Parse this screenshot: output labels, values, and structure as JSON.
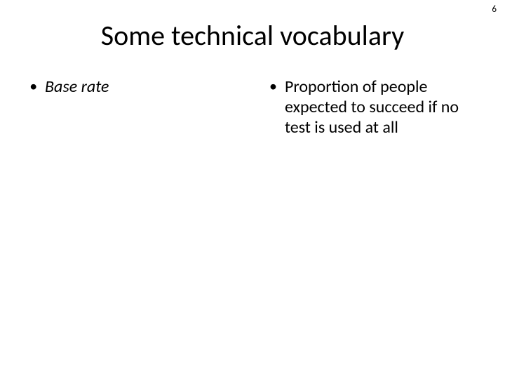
{
  "page_number": "6",
  "title": "Some technical vocabulary",
  "left": {
    "items": [
      {
        "text": "Base rate",
        "italic": true
      }
    ]
  },
  "right": {
    "items": [
      {
        "text": "Proportion of people expected to succeed if no test is used at all",
        "italic": false
      }
    ]
  },
  "style": {
    "background_color": "#ffffff",
    "text_color": "#000000",
    "title_fontsize": 40,
    "body_fontsize": 24,
    "page_number_fontsize": 13,
    "font_family": "Calibri"
  }
}
